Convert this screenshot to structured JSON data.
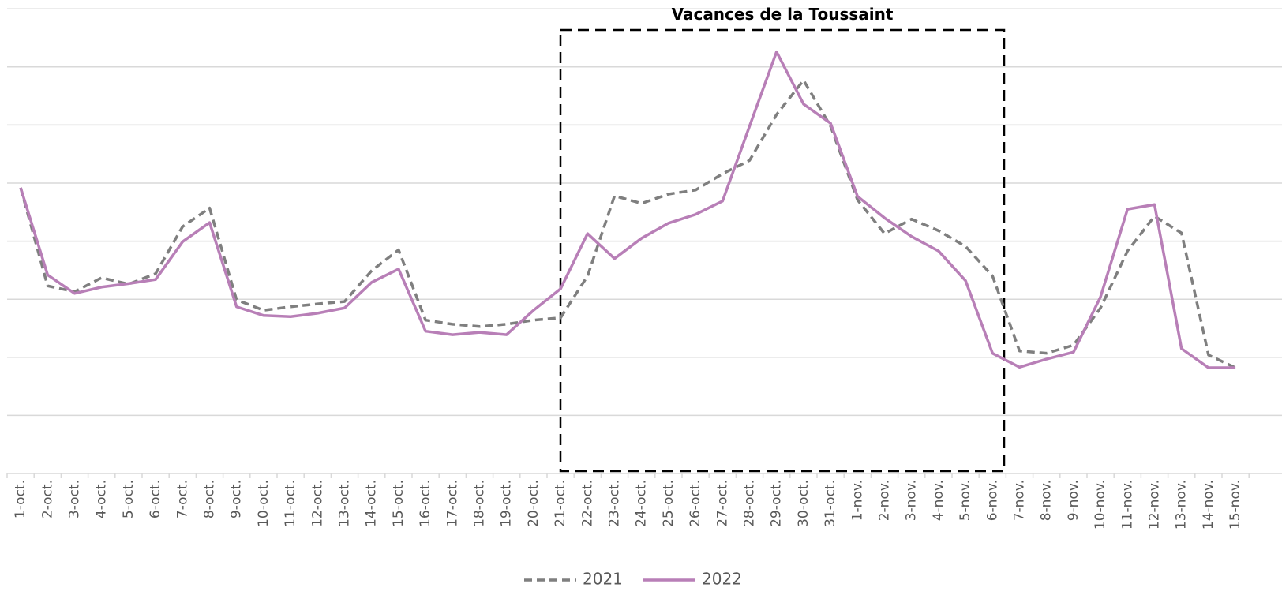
{
  "chart_data": {
    "type": "line",
    "annotation": "Vacances de la Toussaint",
    "categories": [
      "1-oct.",
      "2-oct.",
      "3-oct.",
      "4-oct.",
      "5-oct.",
      "6-oct.",
      "7-oct.",
      "8-oct.",
      "9-oct.",
      "10-oct.",
      "11-oct.",
      "12-oct.",
      "13-oct.",
      "14-oct.",
      "15-oct.",
      "16-oct.",
      "17-oct.",
      "18-oct.",
      "19-oct.",
      "20-oct.",
      "21-oct.",
      "22-oct.",
      "23-oct.",
      "24-oct.",
      "25-oct.",
      "26-oct.",
      "27-oct.",
      "28-oct.",
      "29-oct.",
      "30-oct.",
      "31-oct.",
      "1-nov.",
      "2-nov.",
      "3-nov.",
      "4-nov.",
      "5-nov.",
      "6-nov.",
      "7-nov.",
      "8-nov.",
      "9-nov.",
      "10-nov.",
      "11-nov.",
      "12-nov.",
      "13-nov.",
      "14-nov.",
      "15-nov."
    ],
    "series": [
      {
        "name": "2021",
        "color": "#7f7f7f",
        "dashed": true,
        "values": [
          4.92,
          3.23,
          3.13,
          3.37,
          3.26,
          3.44,
          4.25,
          4.57,
          2.99,
          2.81,
          2.87,
          2.92,
          2.96,
          3.49,
          3.85,
          2.64,
          2.57,
          2.53,
          2.57,
          2.64,
          2.68,
          3.4,
          4.78,
          4.65,
          4.81,
          4.88,
          5.16,
          5.39,
          6.18,
          6.77,
          5.98,
          4.71,
          4.13,
          4.38,
          4.18,
          3.91,
          3.4,
          2.11,
          2.07,
          2.21,
          2.85,
          3.83,
          4.43,
          4.14,
          2.04,
          1.82
        ]
      },
      {
        "name": "2022",
        "color": "#b87fb7",
        "dashed": false,
        "values": [
          4.92,
          3.42,
          3.1,
          3.21,
          3.27,
          3.34,
          3.99,
          4.32,
          2.87,
          2.72,
          2.7,
          2.76,
          2.85,
          3.29,
          3.52,
          2.45,
          2.39,
          2.43,
          2.39,
          2.81,
          3.18,
          4.13,
          3.7,
          4.05,
          4.31,
          4.46,
          4.69,
          5.98,
          7.26,
          6.36,
          6.03,
          4.77,
          4.4,
          4.08,
          3.83,
          3.32,
          2.07,
          1.83,
          1.97,
          2.09,
          3.04,
          4.55,
          4.63,
          2.15,
          1.82,
          1.82
        ]
      }
    ],
    "ylim": [
      0,
      8
    ],
    "yticks": [
      0,
      1,
      2,
      3,
      4,
      5,
      6,
      7,
      8
    ],
    "grid": true,
    "legend": "bottom"
  }
}
